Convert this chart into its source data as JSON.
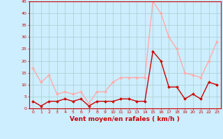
{
  "hours": [
    0,
    1,
    2,
    3,
    4,
    5,
    6,
    7,
    8,
    9,
    10,
    11,
    12,
    13,
    14,
    15,
    16,
    17,
    18,
    19,
    20,
    21,
    22,
    23
  ],
  "wind_avg": [
    3,
    1,
    3,
    3,
    4,
    3,
    4,
    1,
    3,
    3,
    3,
    4,
    4,
    3,
    3,
    24,
    20,
    9,
    9,
    4,
    6,
    4,
    11,
    10
  ],
  "wind_gust": [
    17,
    11,
    14,
    6,
    7,
    6,
    7,
    2,
    7,
    7,
    11,
    13,
    13,
    13,
    13,
    45,
    40,
    30,
    25,
    15,
    14,
    13,
    20,
    28
  ],
  "avg_color": "#cc0000",
  "gust_color": "#ffaaaa",
  "bg_color": "#cceeff",
  "grid_color": "#aacccc",
  "xlabel": "Vent moyen/en rafales ( km/h )",
  "xlabel_color": "#cc0000",
  "ylim": [
    0,
    45
  ],
  "yticks": [
    0,
    5,
    10,
    15,
    20,
    25,
    30,
    35,
    40,
    45
  ],
  "xticks": [
    0,
    1,
    2,
    3,
    4,
    5,
    6,
    7,
    8,
    9,
    10,
    11,
    12,
    13,
    14,
    15,
    16,
    17,
    18,
    19,
    20,
    21,
    22,
    23
  ],
  "marker": "D",
  "marker_size": 2,
  "line_width": 1.0
}
